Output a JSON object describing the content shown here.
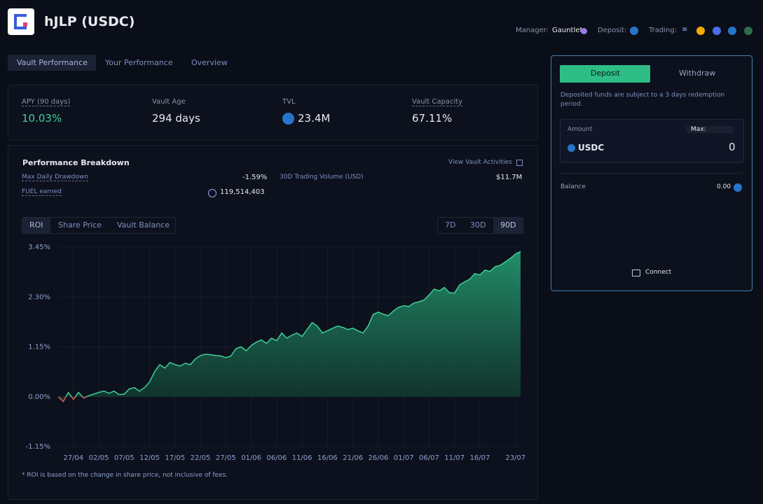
{
  "header": {
    "title": "hJLP (USDC)",
    "manager_label": "Manager:",
    "manager": "Gauntlet",
    "deposit_label": "Deposit:",
    "trading_label": "Trading:"
  },
  "tabs": [
    "Vault Performance",
    "Your Performance",
    "Overview"
  ],
  "stats": [
    {
      "label": "APY (90 days)",
      "value": "10.03%"
    },
    {
      "label": "Vault Age",
      "value": "294 days"
    },
    {
      "label": "TVL",
      "value": "23.4M"
    },
    {
      "label": "Vault Capacity",
      "value": "67.11%"
    }
  ],
  "breakdown": {
    "title": "Performance Breakdown",
    "link": "View Vault Activities",
    "rows": [
      {
        "label": "Max Daily Drawdown",
        "value": "-1.59%"
      },
      {
        "label": "FUEL earned",
        "value": "119,514,403"
      },
      {
        "label": "30D Trading Volume (USD)",
        "value": "$11.7M"
      }
    ]
  },
  "chart_tabs": [
    "ROI",
    "Share Price",
    "Vault Balance"
  ],
  "range_tabs": [
    "7D",
    "30D",
    "90D"
  ],
  "chart_data": {
    "type": "area",
    "categories": [
      null,
      null,
      null,
      "27/04",
      null,
      null,
      null,
      null,
      "02/05",
      null,
      null,
      null,
      null,
      "07/05",
      null,
      null,
      null,
      null,
      "12/05",
      null,
      null,
      null,
      null,
      "17/05",
      null,
      null,
      null,
      null,
      "22/05",
      null,
      null,
      null,
      null,
      "27/05",
      null,
      null,
      null,
      null,
      "01/06",
      null,
      null,
      null,
      null,
      "06/06",
      null,
      null,
      null,
      null,
      "11/06",
      null,
      null,
      null,
      null,
      "16/06",
      null,
      null,
      null,
      null,
      "21/06",
      null,
      null,
      null,
      null,
      "26/06",
      null,
      null,
      null,
      null,
      "01/07",
      null,
      null,
      null,
      null,
      "06/07",
      null,
      null,
      null,
      null,
      "11/07",
      null,
      null,
      null,
      null,
      "16/07",
      null,
      null,
      null,
      null,
      null,
      null,
      "23/07",
      null
    ],
    "series": [
      {
        "name": "ROI",
        "color": "#3fcf98",
        "negative_color": "#e5484d",
        "values": [
          0.0,
          -0.11,
          0.1,
          -0.06,
          0.1,
          -0.03,
          0.02,
          0.06,
          0.1,
          0.13,
          0.08,
          0.13,
          0.05,
          0.06,
          0.18,
          0.21,
          0.13,
          0.21,
          0.34,
          0.58,
          0.74,
          0.66,
          0.79,
          0.74,
          0.71,
          0.77,
          0.74,
          0.87,
          0.95,
          0.98,
          0.97,
          0.95,
          0.94,
          0.9,
          0.94,
          1.11,
          1.15,
          1.06,
          1.18,
          1.26,
          1.31,
          1.23,
          1.35,
          1.29,
          1.47,
          1.35,
          1.42,
          1.47,
          1.39,
          1.55,
          1.71,
          1.63,
          1.47,
          1.52,
          1.58,
          1.63,
          1.6,
          1.55,
          1.58,
          1.52,
          1.47,
          1.63,
          1.9,
          1.95,
          1.9,
          1.87,
          1.98,
          2.06,
          2.1,
          2.08,
          2.16,
          2.19,
          2.23,
          2.35,
          2.48,
          2.44,
          2.52,
          2.4,
          2.39,
          2.58,
          2.65,
          2.71,
          2.84,
          2.81,
          2.92,
          2.89,
          3.0,
          3.03,
          3.11,
          3.19,
          3.29,
          3.35
        ]
      }
    ],
    "ylim": [
      -1.15,
      3.45
    ],
    "yticks": [
      {
        "value": -1.15,
        "label": "-1.15%"
      },
      {
        "value": 0,
        "label": "0.00%"
      },
      {
        "value": 1.15,
        "label": "1.15%"
      },
      {
        "value": 2.3,
        "label": "2.30%"
      },
      {
        "value": 3.45,
        "label": "3.45%"
      }
    ],
    "grid": true,
    "footnote": "* ROI is based on the change in share price, not inclusive of fees."
  },
  "panel": {
    "tabs": [
      "Deposit",
      "Withdraw"
    ],
    "note": "Deposited funds are subject to a 3 days redemption period.",
    "amount_label": "Amount",
    "max_label": "Max:",
    "token": "USDC",
    "amount": "0",
    "balance_label": "Balance",
    "balance": "0.00",
    "connect": "Connect"
  }
}
